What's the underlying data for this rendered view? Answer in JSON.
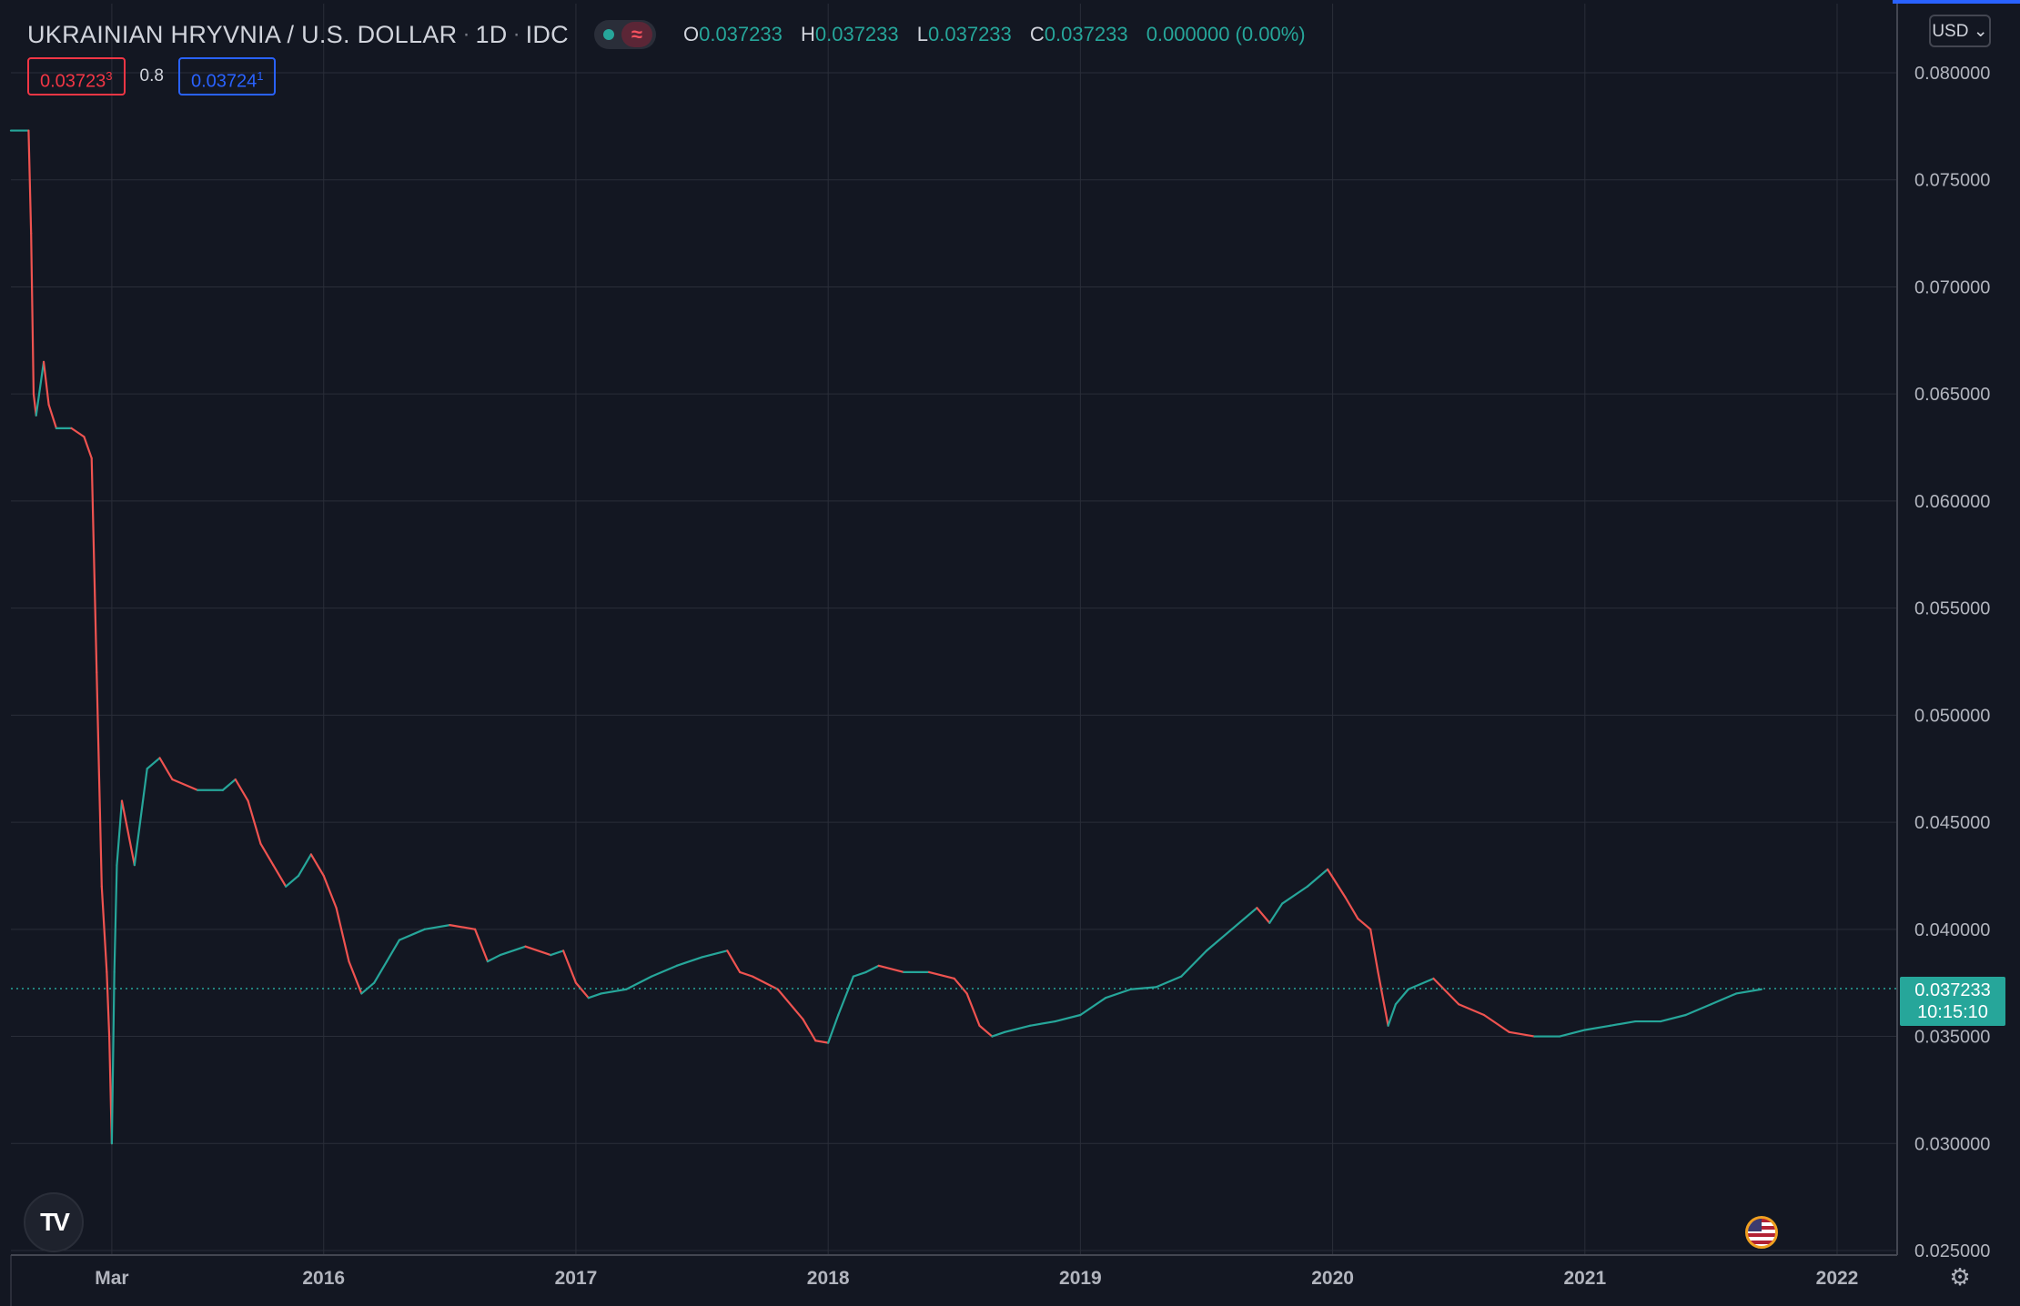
{
  "header": {
    "symbol_title": "UKRAINIAN HRYVNIA / U.S. DOLLAR",
    "interval": "1D",
    "exchange": "IDC",
    "status_icon": "market-status-dot",
    "wave_icon": "≈",
    "ohlc": {
      "o_label": "O",
      "o_value": "0.037233",
      "h_label": "H",
      "h_value": "0.037233",
      "l_label": "L",
      "l_value": "0.037233",
      "c_label": "C",
      "c_value": "0.037233",
      "change": "0.000000 (0.00%)"
    }
  },
  "trade": {
    "sell_main": "0.03723",
    "sell_sup": "3",
    "spread": "0.8",
    "buy_main": "0.03724",
    "buy_sup": "1"
  },
  "currency_button": "USD ⌄",
  "last_price": {
    "price": "0.037233",
    "countdown": "10:15:10"
  },
  "colors": {
    "up": "#26a69a",
    "down": "#ef5350",
    "background": "#131722",
    "grid": "#2a2e39"
  },
  "chart_data": {
    "type": "line",
    "title": "UKRAINIAN HRYVNIA / U.S. DOLLAR",
    "interval": "1D",
    "ylim": [
      0.025,
      0.08
    ],
    "yticks": [
      "0.080000",
      "0.075000",
      "0.070000",
      "0.065000",
      "0.060000",
      "0.055000",
      "0.050000",
      "0.045000",
      "0.040000",
      "0.035000",
      "0.030000",
      "0.025000"
    ],
    "xticks": [
      {
        "label": "Mar",
        "x": 2015.16
      },
      {
        "label": "2016",
        "x": 2016.0
      },
      {
        "label": "2017",
        "x": 2017.0
      },
      {
        "label": "2018",
        "x": 2018.0
      },
      {
        "label": "2019",
        "x": 2019.0
      },
      {
        "label": "2020",
        "x": 2020.0
      },
      {
        "label": "2021",
        "x": 2021.0
      },
      {
        "label": "2022",
        "x": 2022.0
      }
    ],
    "xlim": [
      2014.76,
      2022.22
    ],
    "grid": true,
    "last_value": 0.037233,
    "series": [
      {
        "x": [
          2014.76,
          2014.83,
          2014.84,
          2014.85,
          2014.86,
          2014.89,
          2014.91,
          2014.94,
          2015.0,
          2015.05,
          2015.08,
          2015.1,
          2015.12,
          2015.14,
          2015.15,
          2015.16,
          2015.17,
          2015.18,
          2015.2,
          2015.25,
          2015.3,
          2015.35,
          2015.4,
          2015.5,
          2015.6,
          2015.65,
          2015.7,
          2015.75,
          2015.8,
          2015.85,
          2015.9,
          2015.95,
          2016.0,
          2016.05,
          2016.1,
          2016.15,
          2016.2,
          2016.25,
          2016.3,
          2016.4,
          2016.5,
          2016.6,
          2016.65,
          2016.7,
          2016.8,
          2016.9,
          2016.95,
          2017.0,
          2017.05,
          2017.1,
          2017.2,
          2017.3,
          2017.4,
          2017.5,
          2017.6,
          2017.65,
          2017.7,
          2017.8,
          2017.9,
          2017.95,
          2018.0,
          2018.04,
          2018.1,
          2018.15,
          2018.2,
          2018.3,
          2018.4,
          2018.5,
          2018.55,
          2018.6,
          2018.65,
          2018.7,
          2018.8,
          2018.9,
          2019.0,
          2019.1,
          2019.2,
          2019.3,
          2019.4,
          2019.5,
          2019.6,
          2019.7,
          2019.75,
          2019.8,
          2019.9,
          2019.98,
          2020.05,
          2020.1,
          2020.15,
          2020.18,
          2020.22,
          2020.25,
          2020.3,
          2020.4,
          2020.5,
          2020.6,
          2020.7,
          2020.8,
          2020.9,
          2021.0,
          2021.1,
          2021.2,
          2021.3,
          2021.4,
          2021.5,
          2021.6,
          2021.7
        ],
        "values": [
          0.0773,
          0.0773,
          0.0725,
          0.065,
          0.064,
          0.0665,
          0.0645,
          0.0634,
          0.0634,
          0.063,
          0.062,
          0.052,
          0.042,
          0.038,
          0.035,
          0.03,
          0.038,
          0.043,
          0.046,
          0.043,
          0.0475,
          0.048,
          0.047,
          0.0465,
          0.0465,
          0.047,
          0.046,
          0.044,
          0.043,
          0.042,
          0.0425,
          0.0435,
          0.0425,
          0.041,
          0.0385,
          0.037,
          0.0375,
          0.0385,
          0.0395,
          0.04,
          0.0402,
          0.04,
          0.0385,
          0.0388,
          0.0392,
          0.0388,
          0.039,
          0.0375,
          0.0368,
          0.037,
          0.0372,
          0.0378,
          0.0383,
          0.0387,
          0.039,
          0.038,
          0.0378,
          0.0372,
          0.0358,
          0.0348,
          0.0347,
          0.036,
          0.0378,
          0.038,
          0.0383,
          0.038,
          0.038,
          0.0377,
          0.037,
          0.0355,
          0.035,
          0.0352,
          0.0355,
          0.0357,
          0.036,
          0.0368,
          0.0372,
          0.0373,
          0.0378,
          0.039,
          0.04,
          0.041,
          0.0403,
          0.0412,
          0.042,
          0.0428,
          0.0415,
          0.0405,
          0.04,
          0.038,
          0.0355,
          0.0365,
          0.0372,
          0.0377,
          0.0365,
          0.036,
          0.0352,
          0.035,
          0.035,
          0.0353,
          0.0355,
          0.0357,
          0.0357,
          0.036,
          0.0365,
          0.037,
          0.0372
        ]
      }
    ]
  }
}
